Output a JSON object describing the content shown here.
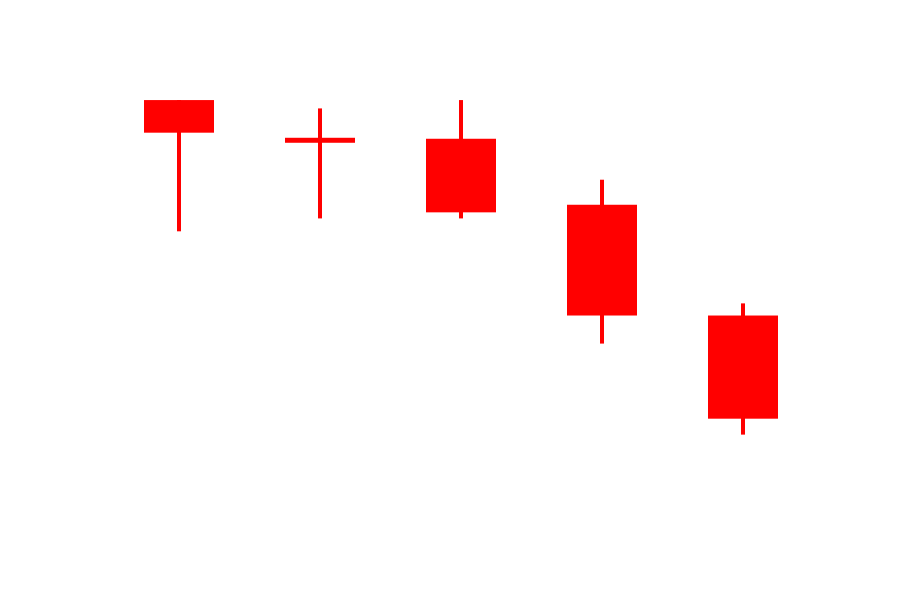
{
  "chart_data": {
    "type": "candlestick",
    "title": "",
    "xlabel": "",
    "ylabel": "",
    "axes_visible": false,
    "grid": false,
    "legend": "none",
    "ylim": [
      5,
      63
    ],
    "colors": {
      "background": "#ffffff",
      "bearish": "#ff0000"
    },
    "candles": [
      {
        "index": 1,
        "open": 59.3,
        "close": 55.0,
        "high": 59.3,
        "low": 42.0
      },
      {
        "index": 2,
        "open": 54.0,
        "close": 54.0,
        "high": 58.2,
        "low": 43.7
      },
      {
        "index": 3,
        "open": 54.2,
        "close": 44.5,
        "high": 59.3,
        "low": 43.7
      },
      {
        "index": 4,
        "open": 45.5,
        "close": 30.9,
        "high": 48.8,
        "low": 27.2
      },
      {
        "index": 5,
        "open": 30.9,
        "close": 17.3,
        "high": 32.5,
        "low": 15.2
      }
    ]
  }
}
